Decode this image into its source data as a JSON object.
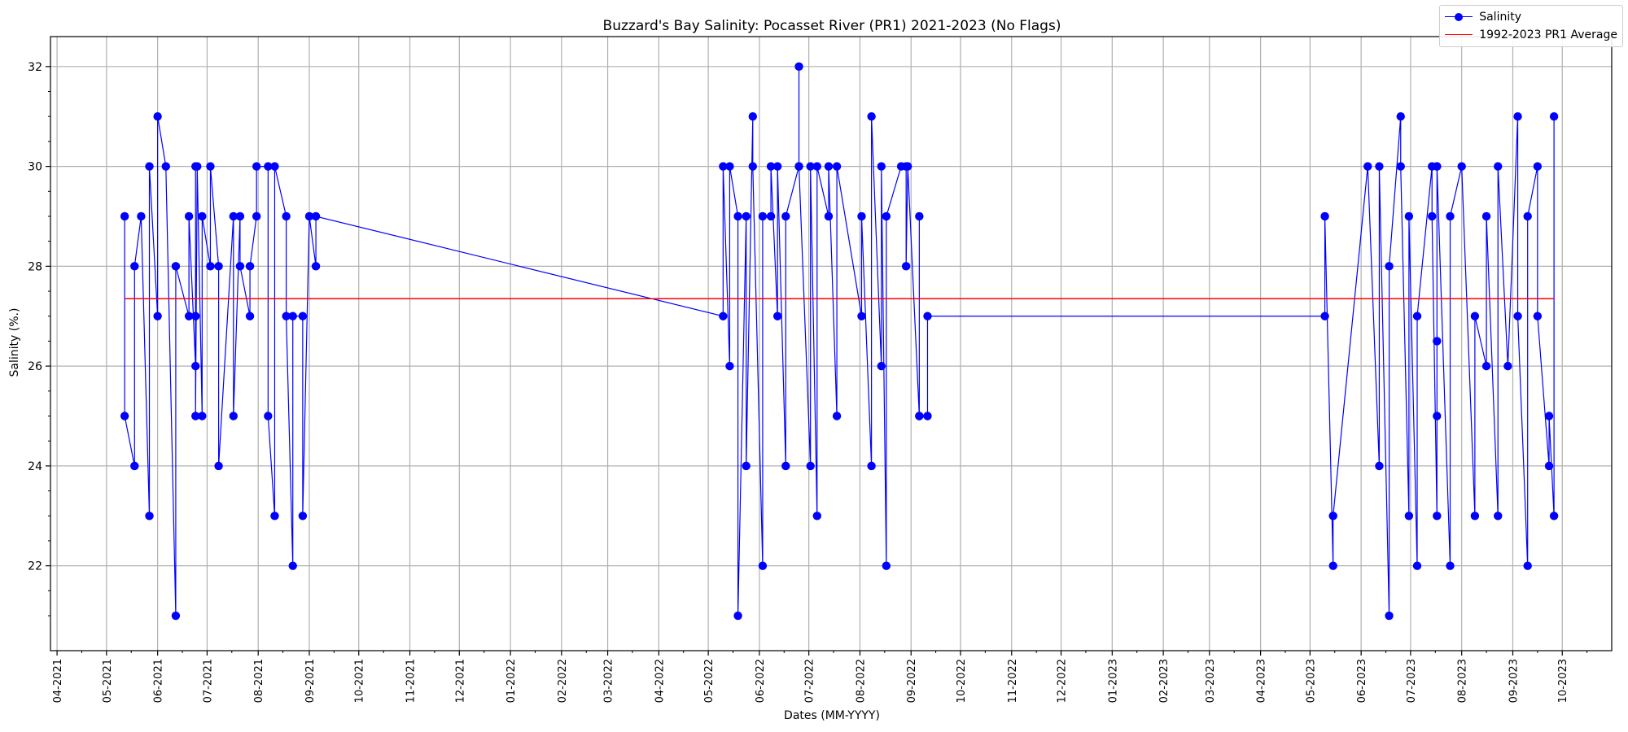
{
  "chart_data": {
    "type": "line",
    "title": "Buzzard's Bay Salinity: Pocasset River (PR1) 2021-2023 (No Flags)",
    "xlabel": "Dates (MM-YYYY)",
    "ylabel": "Salinity (%.)",
    "grid": true,
    "legend_position": "top-right",
    "xlim": [
      "2021-03-28",
      "2023-10-31"
    ],
    "ylim": [
      20.3,
      32.6
    ],
    "y_ticks": [
      22,
      24,
      26,
      28,
      30,
      32
    ],
    "x_ticks": [
      "04-2021",
      "05-2021",
      "06-2021",
      "07-2021",
      "08-2021",
      "09-2021",
      "10-2021",
      "11-2021",
      "12-2021",
      "01-2022",
      "02-2022",
      "03-2022",
      "04-2022",
      "05-2022",
      "06-2022",
      "07-2022",
      "08-2022",
      "09-2022",
      "10-2022",
      "11-2022",
      "12-2022",
      "01-2023",
      "02-2023",
      "03-2023",
      "04-2023",
      "05-2023",
      "06-2023",
      "07-2023",
      "08-2023",
      "09-2023",
      "10-2023"
    ],
    "series": [
      {
        "name": "Salinity",
        "color": "#0000ff",
        "marker": "circle",
        "points": [
          [
            "2021-05-12",
            29
          ],
          [
            "2021-05-12",
            25
          ],
          [
            "2021-05-18",
            24
          ],
          [
            "2021-05-18",
            28
          ],
          [
            "2021-05-22",
            29
          ],
          [
            "2021-05-27",
            23
          ],
          [
            "2021-05-27",
            30
          ],
          [
            "2021-06-01",
            27
          ],
          [
            "2021-06-01",
            31
          ],
          [
            "2021-06-06",
            30
          ],
          [
            "2021-06-12",
            21
          ],
          [
            "2021-06-12",
            28
          ],
          [
            "2021-06-20",
            27
          ],
          [
            "2021-06-20",
            29
          ],
          [
            "2021-06-24",
            26
          ],
          [
            "2021-06-24",
            30
          ],
          [
            "2021-06-24",
            27
          ],
          [
            "2021-06-24",
            25
          ],
          [
            "2021-06-25",
            30
          ],
          [
            "2021-06-28",
            25
          ],
          [
            "2021-06-28",
            29
          ],
          [
            "2021-07-03",
            28
          ],
          [
            "2021-07-03",
            30
          ],
          [
            "2021-07-08",
            28
          ],
          [
            "2021-07-08",
            24
          ],
          [
            "2021-07-17",
            29
          ],
          [
            "2021-07-17",
            25
          ],
          [
            "2021-07-21",
            29
          ],
          [
            "2021-07-21",
            28
          ],
          [
            "2021-07-27",
            27
          ],
          [
            "2021-07-27",
            28
          ],
          [
            "2021-07-31",
            29
          ],
          [
            "2021-07-31",
            30
          ],
          [
            "2021-08-07",
            30
          ],
          [
            "2021-08-07",
            25
          ],
          [
            "2021-08-11",
            23
          ],
          [
            "2021-08-11",
            30
          ],
          [
            "2021-08-18",
            29
          ],
          [
            "2021-08-18",
            27
          ],
          [
            "2021-08-22",
            22
          ],
          [
            "2021-08-22",
            27
          ],
          [
            "2021-08-28",
            27
          ],
          [
            "2021-08-28",
            23
          ],
          [
            "2021-09-01",
            29
          ],
          [
            "2021-09-05",
            28
          ],
          [
            "2021-09-05",
            29
          ],
          [
            "2022-05-10",
            27
          ],
          [
            "2022-05-10",
            30
          ],
          [
            "2022-05-14",
            26
          ],
          [
            "2022-05-14",
            30
          ],
          [
            "2022-05-19",
            29
          ],
          [
            "2022-05-19",
            21
          ],
          [
            "2022-05-24",
            29
          ],
          [
            "2022-05-24",
            24
          ],
          [
            "2022-05-28",
            31
          ],
          [
            "2022-05-28",
            30
          ],
          [
            "2022-06-03",
            22
          ],
          [
            "2022-06-03",
            29
          ],
          [
            "2022-06-08",
            29
          ],
          [
            "2022-06-08",
            30
          ],
          [
            "2022-06-12",
            27
          ],
          [
            "2022-06-12",
            30
          ],
          [
            "2022-06-17",
            24
          ],
          [
            "2022-06-17",
            29
          ],
          [
            "2022-06-25",
            30
          ],
          [
            "2022-06-25",
            32
          ],
          [
            "2022-06-25",
            30
          ],
          [
            "2022-07-02",
            24
          ],
          [
            "2022-07-02",
            30
          ],
          [
            "2022-07-06",
            23
          ],
          [
            "2022-07-06",
            30
          ],
          [
            "2022-07-13",
            29
          ],
          [
            "2022-07-13",
            30
          ],
          [
            "2022-07-18",
            25
          ],
          [
            "2022-07-18",
            30
          ],
          [
            "2022-08-02",
            27
          ],
          [
            "2022-08-02",
            29
          ],
          [
            "2022-08-08",
            24
          ],
          [
            "2022-08-08",
            31
          ],
          [
            "2022-08-14",
            26
          ],
          [
            "2022-08-14",
            30
          ],
          [
            "2022-08-17",
            22
          ],
          [
            "2022-08-17",
            29
          ],
          [
            "2022-08-26",
            30
          ],
          [
            "2022-08-29",
            30
          ],
          [
            "2022-08-29",
            28
          ],
          [
            "2022-08-30",
            30
          ],
          [
            "2022-09-06",
            25
          ],
          [
            "2022-09-06",
            29
          ],
          [
            "2022-09-06",
            25
          ],
          [
            "2022-09-11",
            25
          ],
          [
            "2022-09-11",
            27
          ],
          [
            "2023-05-10",
            27
          ],
          [
            "2023-05-10",
            29
          ],
          [
            "2023-05-15",
            22
          ],
          [
            "2023-05-15",
            23
          ],
          [
            "2023-06-05",
            30
          ],
          [
            "2023-06-12",
            24
          ],
          [
            "2023-06-12",
            30
          ],
          [
            "2023-06-18",
            21
          ],
          [
            "2023-06-18",
            28
          ],
          [
            "2023-06-25",
            31
          ],
          [
            "2023-06-25",
            30
          ],
          [
            "2023-06-30",
            23
          ],
          [
            "2023-06-30",
            29
          ],
          [
            "2023-07-05",
            22
          ],
          [
            "2023-07-05",
            27
          ],
          [
            "2023-07-14",
            30
          ],
          [
            "2023-07-14",
            29
          ],
          [
            "2023-07-17",
            23
          ],
          [
            "2023-07-17",
            30
          ],
          [
            "2023-07-17",
            25
          ],
          [
            "2023-07-17",
            26.5
          ],
          [
            "2023-07-17",
            30
          ],
          [
            "2023-07-25",
            22
          ],
          [
            "2023-07-25",
            29
          ],
          [
            "2023-08-01",
            30
          ],
          [
            "2023-08-09",
            23
          ],
          [
            "2023-08-09",
            27
          ],
          [
            "2023-08-16",
            26
          ],
          [
            "2023-08-16",
            29
          ],
          [
            "2023-08-23",
            23
          ],
          [
            "2023-08-23",
            30
          ],
          [
            "2023-08-29",
            26
          ],
          [
            "2023-09-04",
            31
          ],
          [
            "2023-09-04",
            27
          ],
          [
            "2023-09-10",
            22
          ],
          [
            "2023-09-10",
            29
          ],
          [
            "2023-09-16",
            30
          ],
          [
            "2023-09-16",
            27
          ],
          [
            "2023-09-23",
            24
          ],
          [
            "2023-09-23",
            25
          ],
          [
            "2023-09-26",
            23
          ],
          [
            "2023-09-26",
            31
          ]
        ]
      },
      {
        "name": "1992-2023 PR1 Average",
        "color": "#ff0000",
        "marker": "none",
        "points": [
          [
            "2021-05-12",
            27.35
          ],
          [
            "2023-09-26",
            27.35
          ]
        ]
      }
    ]
  }
}
